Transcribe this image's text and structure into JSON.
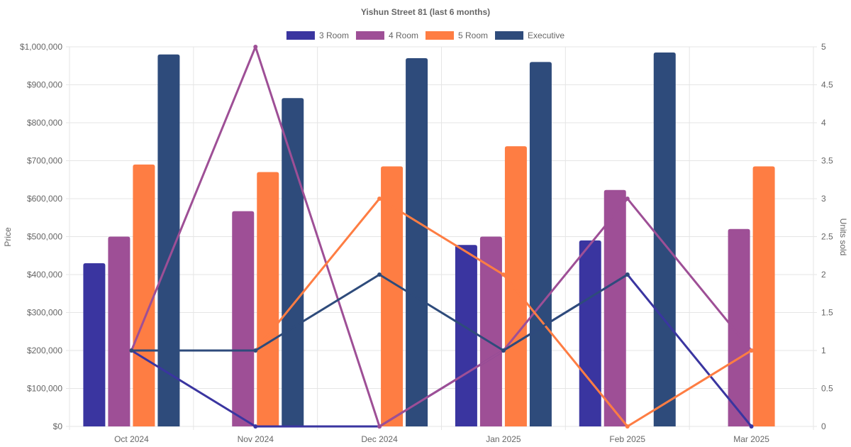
{
  "chart_data": {
    "type": "bar",
    "title": "Yishun Street 81 (last 6 months)",
    "categories": [
      "Oct 2024",
      "Nov 2024",
      "Dec 2024",
      "Jan 2025",
      "Feb 2025",
      "Mar 2025"
    ],
    "ylabel": "Price",
    "y2label": "Units sold",
    "ylim": [
      0,
      1000000
    ],
    "y2lim": [
      0,
      5
    ],
    "yticks": [
      "$0",
      "$100,000",
      "$200,000",
      "$300,000",
      "$400,000",
      "$500,000",
      "$600,000",
      "$700,000",
      "$800,000",
      "$900,000",
      "$1,000,000"
    ],
    "y2ticks": [
      "0",
      "0.5",
      "1",
      "1.5",
      "2",
      "2.5",
      "3",
      "3.5",
      "4",
      "4.5",
      "5"
    ],
    "legend": [
      "3 Room",
      "4 Room",
      "5 Room",
      "Executive"
    ],
    "legend_position": "top",
    "grid": true,
    "series": [
      {
        "name": "3 Room",
        "kind": "price",
        "values": [
          430000,
          null,
          null,
          478000,
          490000,
          null
        ]
      },
      {
        "name": "4 Room",
        "kind": "price",
        "values": [
          500000,
          567000,
          null,
          500000,
          623000,
          520000
        ]
      },
      {
        "name": "5 Room",
        "kind": "price",
        "values": [
          690000,
          670000,
          685000,
          738000,
          null,
          685000
        ]
      },
      {
        "name": "Executive",
        "kind": "price",
        "values": [
          980000,
          865000,
          970000,
          960000,
          985000,
          null
        ]
      },
      {
        "name": "3 Room",
        "kind": "units",
        "values": [
          1,
          0,
          0,
          1,
          2,
          0
        ]
      },
      {
        "name": "4 Room",
        "kind": "units",
        "values": [
          1,
          5,
          0,
          1,
          3,
          1
        ]
      },
      {
        "name": "5 Room",
        "kind": "units",
        "values": [
          1,
          1,
          3,
          2,
          0,
          1
        ]
      },
      {
        "name": "Executive",
        "kind": "units",
        "values": [
          1,
          1,
          2,
          1,
          2,
          null
        ]
      }
    ],
    "colors": {
      "3 Room": "#3a35a0",
      "4 Room": "#9e4f96",
      "5 Room": "#fe7d43",
      "Executive": "#2e4b7b"
    }
  }
}
